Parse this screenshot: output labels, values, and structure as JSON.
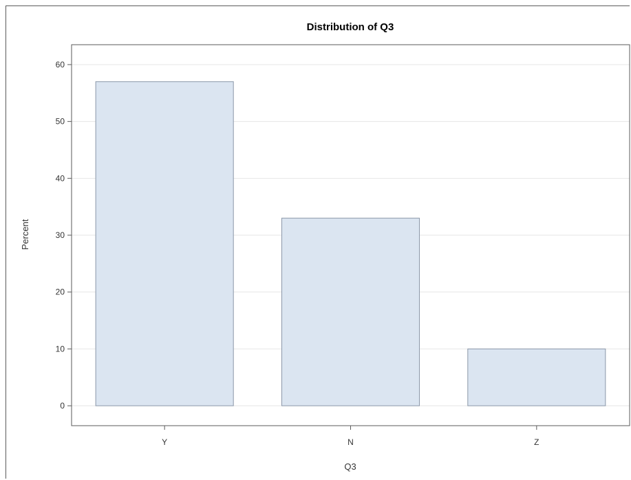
{
  "chart_data": {
    "type": "bar",
    "title": "Distribution of Q3",
    "xlabel": "Q3",
    "ylabel": "Percent",
    "categories": [
      "Y",
      "N",
      "Z"
    ],
    "values": [
      57,
      33,
      10
    ],
    "ylim": [
      -3.5,
      63.5
    ],
    "yticks": [
      0,
      10,
      20,
      30,
      40,
      50,
      60
    ],
    "grid": true,
    "bar_fill": "#dbe5f1",
    "bar_stroke": "#8a97a8"
  }
}
